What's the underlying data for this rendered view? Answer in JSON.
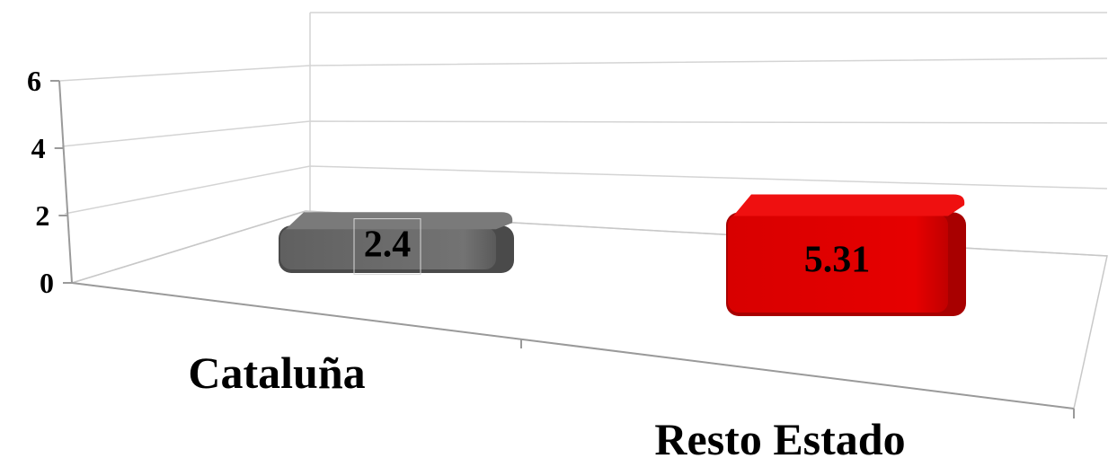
{
  "chart_data": {
    "type": "bar",
    "categories": [
      "Cataluña",
      "Resto Estado"
    ],
    "values": [
      2.4,
      5.31
    ],
    "ylim": [
      0,
      6
    ],
    "yticks": [
      0,
      2,
      4,
      6
    ],
    "colors": [
      "#6b6b6b",
      "#e00000"
    ],
    "grid": true,
    "legend": false
  }
}
